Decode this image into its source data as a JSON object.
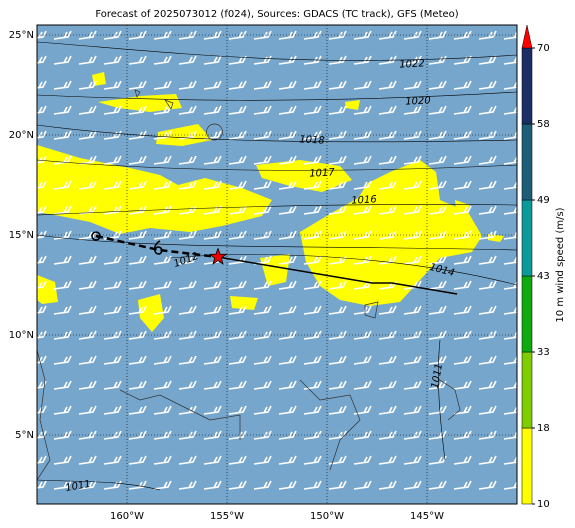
{
  "map": {
    "title": "Forecast of 2025073012 (f024), Sources: GDACS (TC track), GFS (Meteo)",
    "lon_range": [
      -164.5,
      -140.5
    ],
    "lat_range": [
      1.55,
      25.5
    ],
    "lon_ticks": [
      {
        "value": -160,
        "label": "160°W"
      },
      {
        "value": -155,
        "label": "155°W"
      },
      {
        "value": -150,
        "label": "150°W"
      },
      {
        "value": -145,
        "label": "145°W"
      }
    ],
    "lat_ticks": [
      {
        "value": 5,
        "label": "5°N"
      },
      {
        "value": 10,
        "label": "10°N"
      },
      {
        "value": 15,
        "label": "15°N"
      },
      {
        "value": 20,
        "label": "20°N"
      },
      {
        "value": 25,
        "label": "25°N"
      }
    ],
    "track_past": {
      "lon": [
        -161.55,
        -158.4,
        -155.45
      ],
      "lat": [
        14.95,
        14.25,
        13.9
      ]
    },
    "track_forecast": {
      "lon": [
        -155.45,
        -147.75,
        -146.75,
        -143.5
      ],
      "lat": [
        13.9,
        12.6,
        12.6,
        12.05
      ]
    },
    "current_position": {
      "lon": -155.45,
      "lat": 13.9
    },
    "contour_labels": [
      "1022",
      "1020",
      "1018",
      "1017",
      "1016",
      "1014",
      "1012",
      "1011",
      "1011"
    ],
    "colorbar": {
      "label": "10 m wind speed (m/s)",
      "ticks": [
        10,
        18,
        33,
        43,
        49,
        58,
        70
      ],
      "colors": [
        "#ffff00",
        "#7fcc00",
        "#0faa0f",
        "#0a9a9a",
        "#1c5e78",
        "#1c2e66"
      ],
      "extend_color": "#ff0000"
    }
  }
}
